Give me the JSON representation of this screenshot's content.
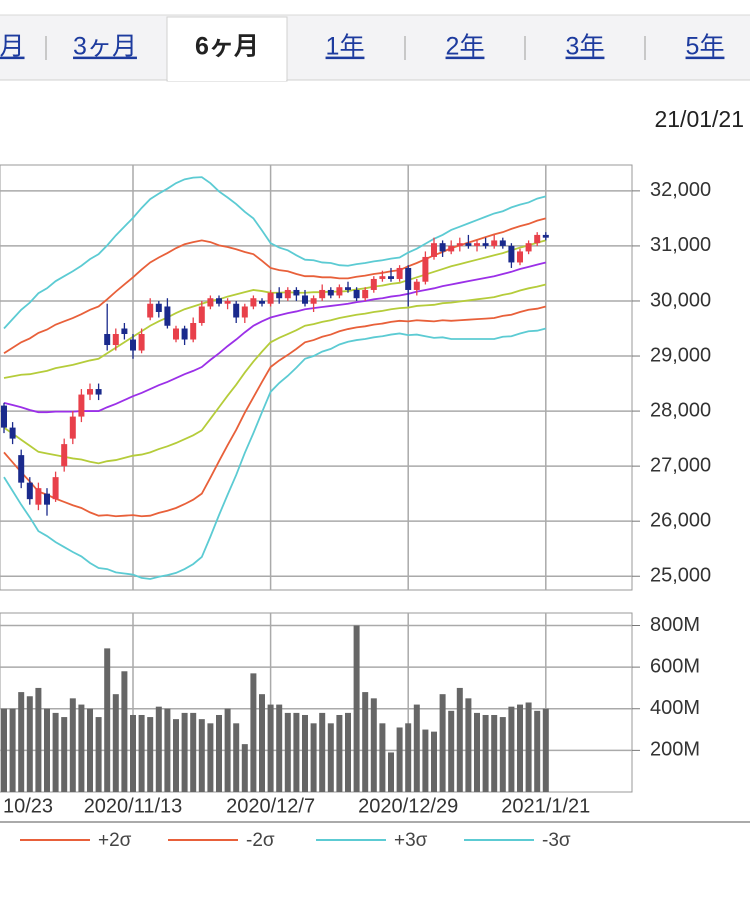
{
  "tabs": [
    "月",
    "3ヶ月",
    "6ヶ月",
    "1年",
    "2年",
    "3年",
    "5年"
  ],
  "date": "21/01/21",
  "chart_data": [
    {
      "type": "candlestick",
      "up_color": "#e8404a",
      "down_color": "#1a2a8c",
      "ylim": [
        24750,
        32470
      ],
      "yticks": [
        {
          "value": 25000,
          "label": "25,000"
        },
        {
          "value": 26000,
          "label": "26,000"
        },
        {
          "value": 27000,
          "label": "27,000"
        },
        {
          "value": 28000,
          "label": "28,000"
        },
        {
          "value": 29000,
          "label": "29,000"
        },
        {
          "value": 30000,
          "label": "30,000"
        },
        {
          "value": 31000,
          "label": "31,000"
        },
        {
          "value": 32000,
          "label": "32,000"
        }
      ],
      "grid": true,
      "open": [
        28100,
        27700,
        27200,
        26700,
        26300,
        26500,
        26400,
        27000,
        27500,
        27900,
        28300,
        28400,
        29400,
        29200,
        29500,
        29300,
        29100,
        29700,
        29950,
        29900,
        29300,
        29500,
        29300,
        29600,
        29900,
        30050,
        29950,
        29950,
        29700,
        29900,
        30000,
        29950,
        30150,
        30050,
        30200,
        30100,
        29950,
        30050,
        30200,
        30100,
        30250,
        30200,
        30050,
        30200,
        30400,
        30450,
        30400,
        30600,
        30200,
        30350,
        30800,
        31050,
        30900,
        31000,
        31050,
        31000,
        31050,
        31000,
        31100,
        31000,
        30700,
        30900,
        31050,
        31200
      ],
      "high": [
        28150,
        27800,
        27300,
        26800,
        26700,
        26600,
        26900,
        27500,
        28000,
        28400,
        28500,
        28500,
        29950,
        29500,
        29600,
        29400,
        29500,
        30050,
        30000,
        30050,
        29550,
        29550,
        29700,
        30000,
        30100,
        30100,
        30050,
        30000,
        29950,
        30100,
        30050,
        30200,
        30250,
        30250,
        30250,
        30200,
        30100,
        30300,
        30250,
        30300,
        30350,
        30250,
        30250,
        30450,
        30550,
        30600,
        30650,
        30650,
        30400,
        30900,
        31150,
        31100,
        31100,
        31150,
        31200,
        31100,
        31150,
        31200,
        31150,
        31050,
        30950,
        31100,
        31250,
        31250
      ],
      "low": [
        27600,
        27400,
        26600,
        26300,
        26200,
        26100,
        26350,
        26900,
        27400,
        27800,
        28200,
        28200,
        29100,
        29100,
        29300,
        28950,
        29050,
        29650,
        29700,
        29500,
        29250,
        29200,
        29250,
        29550,
        29850,
        29900,
        29850,
        29600,
        29600,
        29850,
        29900,
        29900,
        29950,
        30000,
        30000,
        29900,
        29800,
        30000,
        30050,
        30050,
        30150,
        30000,
        30000,
        30150,
        30350,
        30350,
        30350,
        29900,
        30100,
        30300,
        30750,
        30800,
        30850,
        30900,
        30950,
        30900,
        30950,
        30950,
        30950,
        30600,
        30650,
        30850,
        31000,
        31100
      ],
      "close": [
        27700,
        27500,
        26700,
        26400,
        26600,
        26300,
        26800,
        27400,
        27900,
        28300,
        28400,
        28300,
        29200,
        29400,
        29400,
        29100,
        29400,
        29950,
        29800,
        29550,
        29500,
        29300,
        29600,
        29900,
        30050,
        29950,
        30000,
        29700,
        29900,
        30050,
        29950,
        30150,
        30050,
        30200,
        30100,
        29950,
        30050,
        30200,
        30100,
        30250,
        30200,
        30050,
        30200,
        30400,
        30450,
        30400,
        30600,
        30200,
        30350,
        30800,
        31050,
        30900,
        31000,
        31050,
        31000,
        31050,
        31000,
        31100,
        31000,
        30700,
        30900,
        31050,
        31200,
        31150
      ],
      "series": [
        {
          "color": "#9b30e8",
          "values": [
            28150,
            28110,
            28070,
            28020,
            27980,
            27980,
            27990,
            27990,
            27990,
            28000,
            28000,
            28000,
            28070,
            28130,
            28200,
            28270,
            28330,
            28400,
            28470,
            28530,
            28600,
            28670,
            28730,
            28800,
            28930,
            29050,
            29180,
            29300,
            29430,
            29550,
            29630,
            29700,
            29740,
            29780,
            29810,
            29850,
            29870,
            29890,
            29910,
            29930,
            29950,
            29980,
            30000,
            30030,
            30050,
            30080,
            30100,
            30130,
            30170,
            30200,
            30230,
            30270,
            30300,
            30330,
            30360,
            30390,
            30420,
            30450,
            30490,
            30530,
            30580,
            30620,
            30660,
            30700
          ]
        },
        {
          "color": "#b5cc3a",
          "values": [
            28600,
            28630,
            28660,
            28670,
            28700,
            28730,
            28780,
            28810,
            28840,
            28880,
            28920,
            28950,
            29050,
            29150,
            29250,
            29350,
            29450,
            29550,
            29630,
            29700,
            29780,
            29850,
            29900,
            29950,
            30000,
            30030,
            30080,
            30120,
            30160,
            30200,
            30180,
            30150,
            30150,
            30160,
            30150,
            30150,
            30160,
            30160,
            30170,
            30170,
            30180,
            30210,
            30230,
            30260,
            30280,
            30310,
            30330,
            30380,
            30430,
            30480,
            30530,
            30580,
            30630,
            30670,
            30710,
            30750,
            30790,
            30830,
            30870,
            30920,
            30970,
            31010,
            31060,
            31100
          ]
        },
        {
          "color": "#b5cc3a",
          "values": [
            27700,
            27590,
            27480,
            27370,
            27260,
            27230,
            27200,
            27170,
            27140,
            27120,
            27080,
            27050,
            27090,
            27110,
            27150,
            27190,
            27210,
            27250,
            27310,
            27360,
            27420,
            27490,
            27560,
            27650,
            27860,
            28070,
            28280,
            28480,
            28700,
            28900,
            29080,
            29250,
            29330,
            29400,
            29470,
            29550,
            29580,
            29620,
            29650,
            29690,
            29720,
            29750,
            29770,
            29800,
            29820,
            29850,
            29870,
            29880,
            29910,
            29920,
            29930,
            29960,
            29970,
            29990,
            30010,
            30030,
            30050,
            30070,
            30110,
            30140,
            30190,
            30230,
            30260,
            30300
          ]
        },
        {
          "name": "+2σ",
          "color": "#e8603a",
          "values": [
            29050,
            29150,
            29250,
            29320,
            29420,
            29480,
            29570,
            29630,
            29690,
            29760,
            29840,
            29900,
            30030,
            30170,
            30300,
            30430,
            30570,
            30700,
            30790,
            30870,
            30960,
            31030,
            31070,
            31100,
            31070,
            31010,
            30980,
            30940,
            30890,
            30850,
            30730,
            30600,
            30560,
            30540,
            30490,
            30450,
            30450,
            30430,
            30430,
            30410,
            30410,
            30440,
            30460,
            30490,
            30510,
            30540,
            30560,
            30630,
            30690,
            30760,
            30830,
            30890,
            30960,
            31010,
            31060,
            31110,
            31160,
            31210,
            31250,
            31310,
            31360,
            31400,
            31460,
            31500
          ]
        },
        {
          "name": "-2σ",
          "color": "#e8603a",
          "values": [
            27250,
            27070,
            26890,
            26720,
            26540,
            26480,
            26410,
            26350,
            26290,
            26240,
            26160,
            26100,
            26110,
            26090,
            26100,
            26110,
            26090,
            26100,
            26150,
            26190,
            26240,
            26310,
            26390,
            26500,
            26790,
            27090,
            27380,
            27660,
            27970,
            28250,
            28530,
            28800,
            28920,
            29020,
            29130,
            29250,
            29290,
            29350,
            29390,
            29450,
            29490,
            29520,
            29540,
            29570,
            29590,
            29620,
            29640,
            29630,
            29650,
            29640,
            29630,
            29650,
            29640,
            29650,
            29660,
            29670,
            29680,
            29690,
            29730,
            29750,
            29800,
            29840,
            29860,
            29900
          ]
        },
        {
          "name": "+3σ",
          "color": "#5ccbd3",
          "values": [
            29500,
            29670,
            29840,
            29970,
            30140,
            30230,
            30360,
            30450,
            30540,
            30640,
            30760,
            30850,
            31010,
            31190,
            31350,
            31510,
            31690,
            31850,
            31950,
            32040,
            32140,
            32210,
            32240,
            32250,
            32140,
            31990,
            31880,
            31760,
            31620,
            31500,
            31280,
            31050,
            30970,
            30920,
            30830,
            30750,
            30740,
            30700,
            30690,
            30650,
            30640,
            30670,
            30690,
            30720,
            30740,
            30770,
            30790,
            30880,
            30950,
            31040,
            31130,
            31200,
            31290,
            31350,
            31410,
            31470,
            31530,
            31590,
            31630,
            31700,
            31750,
            31790,
            31860,
            31900
          ]
        },
        {
          "name": "-3σ",
          "color": "#5ccbd3",
          "values": [
            26800,
            26550,
            26300,
            26070,
            25820,
            25730,
            25620,
            25530,
            25440,
            25360,
            25240,
            25150,
            25130,
            25070,
            25050,
            25030,
            24970,
            24950,
            24990,
            25020,
            25060,
            25130,
            25220,
            25350,
            25720,
            26110,
            26480,
            26840,
            27240,
            27600,
            27980,
            28350,
            28510,
            28640,
            28790,
            28950,
            29000,
            29080,
            29130,
            29210,
            29260,
            29290,
            29310,
            29340,
            29360,
            29390,
            29410,
            29380,
            29390,
            29360,
            29330,
            29340,
            29310,
            29310,
            29310,
            29310,
            29310,
            29310,
            29350,
            29360,
            29410,
            29450,
            29460,
            29500
          ]
        }
      ]
    },
    {
      "type": "bar",
      "color": "#666666",
      "categories": [
        "10/23",
        null,
        null,
        null,
        null,
        null,
        null,
        null,
        null,
        null,
        null,
        null,
        null,
        null,
        null,
        "2020/11/13",
        null,
        null,
        null,
        null,
        null,
        null,
        null,
        null,
        null,
        null,
        null,
        null,
        null,
        null,
        null,
        "2020/12/7",
        null,
        null,
        null,
        null,
        null,
        null,
        null,
        null,
        null,
        null,
        null,
        null,
        null,
        null,
        null,
        "2020/12/29",
        null,
        null,
        null,
        null,
        null,
        null,
        null,
        null,
        null,
        null,
        null,
        null,
        null,
        null,
        null,
        "2021/1/21"
      ],
      "values": [
        400000000,
        400000000,
        480000000,
        460000000,
        500000000,
        400000000,
        380000000,
        360000000,
        450000000,
        420000000,
        400000000,
        360000000,
        690000000,
        470000000,
        580000000,
        370000000,
        370000000,
        360000000,
        410000000,
        400000000,
        350000000,
        380000000,
        380000000,
        350000000,
        330000000,
        370000000,
        400000000,
        330000000,
        230000000,
        570000000,
        470000000,
        420000000,
        420000000,
        380000000,
        380000000,
        370000000,
        330000000,
        380000000,
        330000000,
        370000000,
        380000000,
        800000000,
        480000000,
        450000000,
        330000000,
        190000000,
        310000000,
        330000000,
        420000000,
        300000000,
        290000000,
        470000000,
        390000000,
        500000000,
        450000000,
        380000000,
        370000000,
        370000000,
        360000000,
        410000000,
        420000000,
        430000000,
        390000000,
        400000000
      ],
      "ylim": [
        0,
        860000000
      ],
      "yticks": [
        {
          "value": 200000000,
          "label": "200M"
        },
        {
          "value": 400000000,
          "label": "400M"
        },
        {
          "value": 600000000,
          "label": "600M"
        },
        {
          "value": 800000000,
          "label": "800M"
        }
      ],
      "grid": true
    }
  ]
}
